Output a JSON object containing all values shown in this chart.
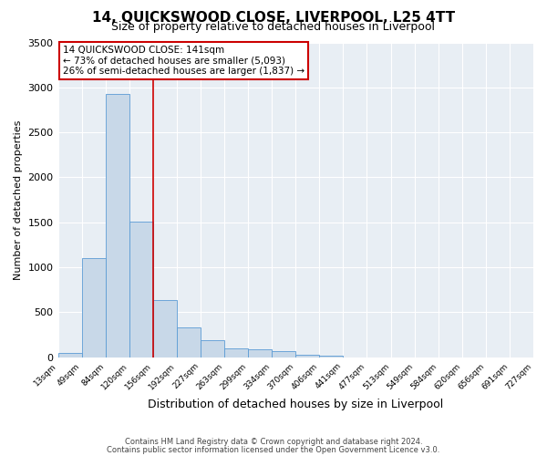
{
  "title": "14, QUICKSWOOD CLOSE, LIVERPOOL, L25 4TT",
  "subtitle": "Size of property relative to detached houses in Liverpool",
  "xlabel": "Distribution of detached houses by size in Liverpool",
  "ylabel": "Number of detached properties",
  "bar_values": [
    50,
    1100,
    2930,
    1510,
    640,
    330,
    190,
    95,
    90,
    65,
    30,
    20,
    0,
    0,
    0,
    0,
    0,
    0,
    0,
    0
  ],
  "x_labels": [
    "13sqm",
    "49sqm",
    "84sqm",
    "120sqm",
    "156sqm",
    "192sqm",
    "227sqm",
    "263sqm",
    "299sqm",
    "334sqm",
    "370sqm",
    "406sqm",
    "441sqm",
    "477sqm",
    "513sqm",
    "549sqm",
    "584sqm",
    "620sqm",
    "656sqm",
    "691sqm",
    "727sqm"
  ],
  "bar_color": "#c8d8e8",
  "bar_edge_color": "#5b9bd5",
  "ylim": [
    0,
    3500
  ],
  "yticks": [
    0,
    500,
    1000,
    1500,
    2000,
    2500,
    3000,
    3500
  ],
  "annotation_title": "14 QUICKSWOOD CLOSE: 141sqm",
  "annotation_line1": "← 73% of detached houses are smaller (5,093)",
  "annotation_line2": "26% of semi-detached houses are larger (1,837) →",
  "annotation_box_color": "#ffffff",
  "annotation_box_edge_color": "#cc0000",
  "vline_x": 3.5,
  "vline_color": "#cc0000",
  "footer1": "Contains HM Land Registry data © Crown copyright and database right 2024.",
  "footer2": "Contains public sector information licensed under the Open Government Licence v3.0.",
  "bg_color": "#e8eef4",
  "grid_color": "#ffffff"
}
